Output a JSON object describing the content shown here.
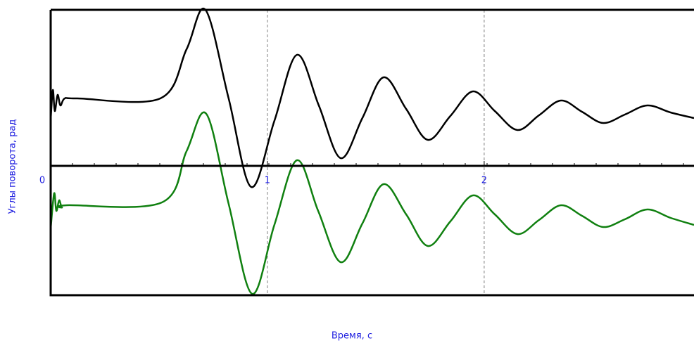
{
  "chart_data": {
    "type": "line",
    "x_label": "Время, с",
    "y_label": "Углы поворота, рад",
    "xlim": [
      0,
      2.968
    ],
    "ylim": [
      -1.84,
      2.22
    ],
    "xticks": [
      0,
      1,
      2
    ],
    "grid": true,
    "series": [
      {
        "color": "#000000",
        "x": [
          0,
          0.01,
          0.019,
          0.032,
          0.045,
          0.065,
          0.123,
          0.506,
          0.627,
          0.714,
          0.821,
          0.925,
          1.032,
          1.136,
          1.237,
          1.338,
          1.438,
          1.536,
          1.64,
          1.74,
          1.844,
          1.948,
          2.049,
          2.153,
          2.253,
          2.354,
          2.451,
          2.549,
          2.649,
          2.753,
          2.86,
          2.968
        ],
        "values": [
          0.66,
          1.08,
          0.78,
          1.01,
          0.86,
          0.96,
          0.96,
          0.96,
          1.66,
          2.22,
          0.96,
          -0.3,
          0.64,
          1.58,
          0.86,
          0.11,
          0.68,
          1.26,
          0.81,
          0.37,
          0.71,
          1.06,
          0.78,
          0.51,
          0.72,
          0.93,
          0.77,
          0.61,
          0.73,
          0.86,
          0.76,
          0.68
        ]
      },
      {
        "color": "#108010",
        "x": [
          0,
          0.016,
          0.026,
          0.039,
          0.052,
          0.075,
          0.513,
          0.627,
          0.718,
          0.821,
          0.929,
          1.032,
          1.136,
          1.234,
          1.338,
          1.438,
          1.536,
          1.64,
          1.74,
          1.844,
          1.948,
          2.049,
          2.153,
          2.253,
          2.354,
          2.451,
          2.549,
          2.649,
          2.753,
          2.86,
          2.968
        ],
        "values": [
          -0.89,
          -0.39,
          -0.64,
          -0.49,
          -0.59,
          -0.56,
          -0.52,
          0.21,
          0.74,
          -0.54,
          -1.82,
          -0.84,
          0.08,
          -0.64,
          -1.37,
          -0.82,
          -0.26,
          -0.69,
          -1.14,
          -0.79,
          -0.42,
          -0.69,
          -0.97,
          -0.77,
          -0.56,
          -0.71,
          -0.87,
          -0.76,
          -0.62,
          -0.74,
          -0.84
        ]
      }
    ]
  }
}
